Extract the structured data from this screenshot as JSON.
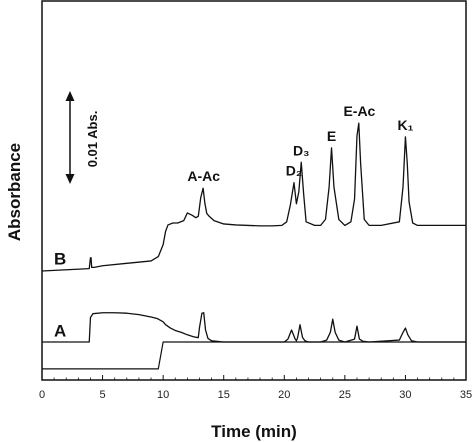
{
  "chart_data": {
    "type": "line",
    "xlabel": "Time (min)",
    "ylabel": "Absorbance",
    "xlim": [
      0,
      35
    ],
    "xticks": [
      0,
      5,
      10,
      15,
      20,
      25,
      30,
      35
    ],
    "scale_bar_label": "0.01 Abs.",
    "series": [
      {
        "name": "A",
        "x": [
          0,
          3.9,
          4.0,
          4.2,
          5,
          6,
          7,
          8,
          9,
          9.5,
          10,
          10.2,
          10.6,
          11,
          11.5,
          12,
          12.5,
          12.9,
          13.0,
          13.2,
          13.35,
          13.5,
          13.7,
          14,
          15,
          18,
          20,
          20.3,
          20.6,
          20.9,
          21.0,
          21.1,
          21.3,
          21.5,
          21.7,
          22,
          23,
          23.5,
          23.8,
          24.0,
          24.2,
          24.5,
          25,
          25.8,
          26.0,
          26.2,
          26.5,
          27,
          29.5,
          29.8,
          30.0,
          30.2,
          30.5,
          31,
          35
        ],
        "y": [
          0.0,
          0.0,
          0.0102,
          0.0118,
          0.0122,
          0.0122,
          0.012,
          0.0114,
          0.0104,
          0.0098,
          0.0084,
          0.0072,
          0.0058,
          0.0048,
          0.004,
          0.003,
          0.0022,
          0.0018,
          0.006,
          0.012,
          0.0122,
          0.005,
          0.0015,
          0.0005,
          0.0,
          0.0,
          0.0,
          0.0012,
          0.005,
          0.0012,
          0.0005,
          0.0018,
          0.0072,
          0.002,
          0.0005,
          0.0,
          0.0,
          0.0008,
          0.004,
          0.0095,
          0.004,
          0.0008,
          0.0,
          0.0012,
          0.0066,
          0.0012,
          0.0003,
          0.0,
          0.0008,
          0.004,
          0.0058,
          0.003,
          0.0005,
          0.0,
          0.0
        ]
      },
      {
        "name": "B",
        "x": [
          0,
          3.9,
          4.0,
          4.05,
          4.1,
          4.3,
          5,
          7,
          9,
          9.6,
          10,
          10.2,
          10.4,
          10.8,
          11.2,
          11.7,
          12.0,
          12.4,
          12.7,
          12.9,
          13.0,
          13.1,
          13.3,
          13.45,
          13.6,
          13.8,
          14.2,
          15,
          16,
          18,
          19,
          19.8,
          20.2,
          20.5,
          20.8,
          21.0,
          21.2,
          21.4,
          21.6,
          21.8,
          22.5,
          23.0,
          23.4,
          23.7,
          23.9,
          24.1,
          24.5,
          25,
          25.5,
          25.8,
          26.0,
          26.15,
          26.3,
          26.6,
          27,
          28,
          29.5,
          29.8,
          30.0,
          30.15,
          30.3,
          30.6,
          31,
          33,
          35
        ],
        "y": [
          0.0,
          0.001,
          0.0055,
          0.0055,
          0.0015,
          0.0015,
          0.0022,
          0.0032,
          0.0042,
          0.006,
          0.011,
          0.0165,
          0.0192,
          0.02,
          0.02,
          0.021,
          0.0242,
          0.0232,
          0.0222,
          0.0228,
          0.0265,
          0.0305,
          0.0345,
          0.028,
          0.024,
          0.0228,
          0.021,
          0.0196,
          0.0192,
          0.0188,
          0.0188,
          0.019,
          0.0205,
          0.0275,
          0.0368,
          0.028,
          0.033,
          0.0453,
          0.032,
          0.0205,
          0.019,
          0.019,
          0.0215,
          0.035,
          0.0513,
          0.035,
          0.0215,
          0.019,
          0.0205,
          0.03,
          0.0563,
          0.0616,
          0.045,
          0.0215,
          0.019,
          0.019,
          0.0205,
          0.035,
          0.0559,
          0.045,
          0.0288,
          0.02,
          0.019,
          0.019,
          0.019
        ]
      }
    ],
    "trace_labels": [
      {
        "text": "B",
        "series": "B",
        "at_x": 1.5,
        "above": 0.0028
      },
      {
        "text": "A",
        "series": "A",
        "at_x": 1.5,
        "above": 0.0022
      }
    ],
    "peak_labels": [
      {
        "text": "A-Ac",
        "x": 13.35,
        "y": 0.0345
      },
      {
        "text": "D₂",
        "x": 20.8,
        "y": 0.0368
      },
      {
        "text": "D₃",
        "x": 21.4,
        "y": 0.0453
      },
      {
        "text": "E",
        "x": 23.9,
        "y": 0.0513
      },
      {
        "text": "E-Ac",
        "x": 26.2,
        "y": 0.0616
      },
      {
        "text": "K₁",
        "x": 30.0,
        "y": 0.0559
      }
    ],
    "baseline": {
      "x": [
        0,
        9.6,
        10.0,
        35
      ],
      "y": [
        -0.0112,
        -0.0112,
        0.0,
        0.0
      ]
    }
  }
}
